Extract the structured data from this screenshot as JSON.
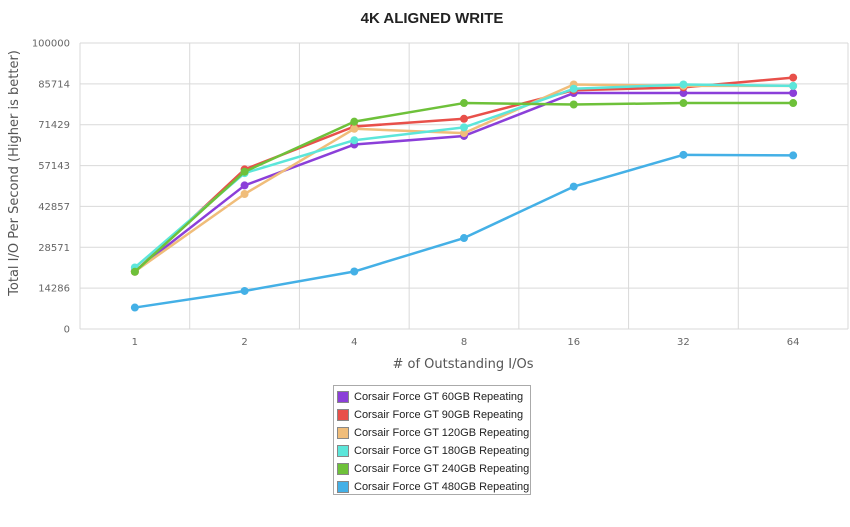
{
  "chart_data": {
    "type": "line",
    "title": "4K ALIGNED WRITE",
    "xlabel": "# of Outstanding I/Os",
    "ylabel": "Total I/O Per Second (Higher is better)",
    "categories": [
      "1",
      "2",
      "4",
      "8",
      "16",
      "32",
      "64"
    ],
    "ylim": [
      0,
      100000
    ],
    "yticks": [
      "0",
      "14286",
      "28571",
      "42857",
      "57143",
      "71429",
      "85714",
      "100000"
    ],
    "grid": true,
    "legend_position": "bottom-center",
    "series": [
      {
        "name": "Corsair Force GT 60GB Repeating",
        "color": "#8b3fd9",
        "values": [
          20300,
          50200,
          64500,
          67500,
          82500,
          82500,
          82500
        ]
      },
      {
        "name": "Corsair Force GT 90GB Repeating",
        "color": "#e8504a",
        "values": [
          20000,
          55800,
          70800,
          73500,
          83500,
          84500,
          87900
        ]
      },
      {
        "name": "Corsair Force GT 120GB Repeating",
        "color": "#f0bd7a",
        "values": [
          20100,
          47200,
          70000,
          68500,
          85500,
          85000,
          85000
        ]
      },
      {
        "name": "Corsair Force GT 180GB Repeating",
        "color": "#5ce6da",
        "values": [
          21500,
          54500,
          66000,
          70500,
          84000,
          85500,
          85000
        ]
      },
      {
        "name": "Corsair Force GT 240GB Repeating",
        "color": "#6ec13a",
        "values": [
          20000,
          55000,
          72500,
          79000,
          78500,
          79000,
          79000
        ]
      },
      {
        "name": "Corsair Force GT 480GB Repeating",
        "color": "#44b0e6",
        "values": [
          7500,
          13300,
          20100,
          31800,
          49800,
          60900,
          60700
        ]
      }
    ]
  }
}
